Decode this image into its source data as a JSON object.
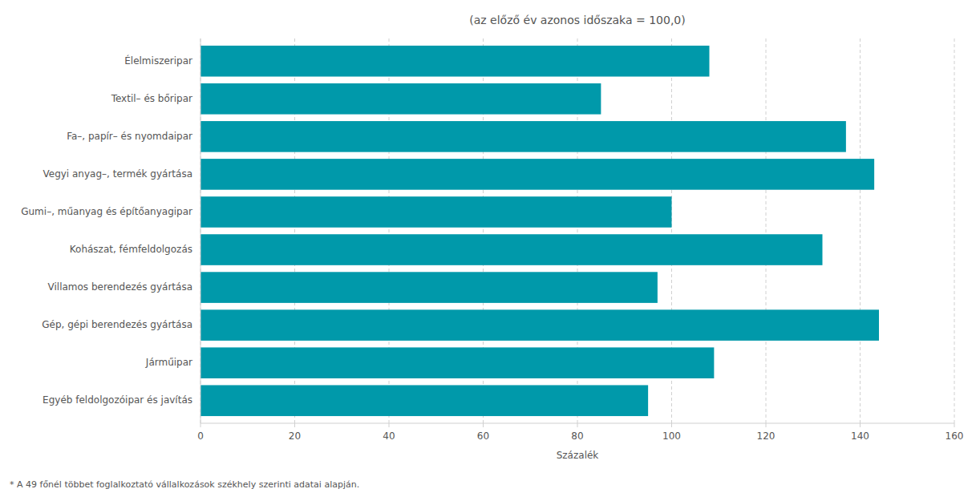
{
  "chart_data": {
    "type": "bar",
    "orientation": "horizontal",
    "title": "(az előző év azonos időszaka = 100,0)",
    "xlabel": "Százalék",
    "categories": [
      "Egyéb feldolgozóipar és javítás",
      "Járműipar",
      "Gép, gépi berendezés gyártása",
      "Villamos berendezés gyártása",
      "Kohászat, fémfeldolgozás",
      "Gumi–, műanyag és építőanyagipar",
      "Vegyi anyag–, termék gyártása",
      "Fa–, papír– és nyomdaipar",
      "Textil– és bőripar",
      "Élelmiszeripar"
    ],
    "values": [
      95,
      109,
      144,
      97,
      132,
      100,
      143,
      137,
      85,
      108
    ],
    "color": "#0099aa",
    "xlim": [
      0,
      160
    ],
    "xticks": [
      0,
      20,
      40,
      60,
      80,
      100,
      120,
      140,
      160
    ],
    "grid": true,
    "annotations": [
      "* A 49 főnél többet foglalkoztató vállalkozások székhely szerinti adatai alapján."
    ]
  }
}
